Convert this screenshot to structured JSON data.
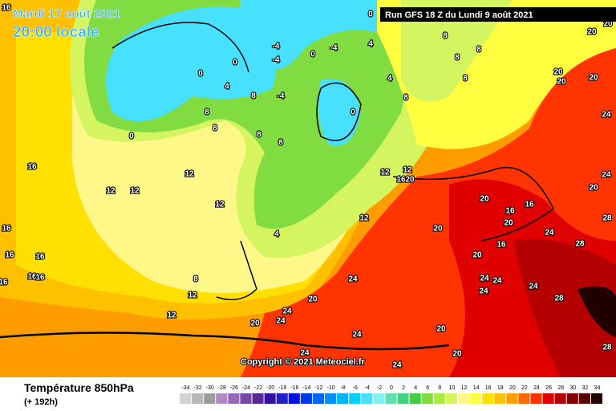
{
  "header": {
    "date": "Mardi 17 août 2021",
    "time": "20:00 locale",
    "run": "Run GFS 18 Z du Lundi 9 août 2021"
  },
  "copyright": "Copyright © 2021 Meteociel.fr",
  "footer": {
    "title": "Température 850hPa",
    "lead": "(+ 192h)"
  },
  "legend": {
    "values": [
      -34,
      -32,
      -30,
      -28,
      -26,
      -24,
      -22,
      -20,
      -18,
      -16,
      -14,
      -12,
      -10,
      -8,
      -6,
      -4,
      -2,
      0,
      2,
      4,
      6,
      8,
      10,
      12,
      14,
      16,
      18,
      20,
      22,
      24,
      26,
      28,
      30,
      32,
      34
    ],
    "colors": [
      "#d4d4d4",
      "#b8b8b8",
      "#9c9c9c",
      "#b488c4",
      "#9868b4",
      "#7848a4",
      "#582894",
      "#3810a0",
      "#2020c4",
      "#0010e0",
      "#0038f0",
      "#0064ff",
      "#0090ff",
      "#00b4ff",
      "#00d0ff",
      "#48e0ff",
      "#88f0f0",
      "#60e0b0",
      "#40d480",
      "#44cc44",
      "#80dc40",
      "#a8ec40",
      "#d4f460",
      "#fff888",
      "#ffff40",
      "#ffe000",
      "#ffc000",
      "#ffa000",
      "#ff6a00",
      "#ff3400",
      "#e00000",
      "#b40000",
      "#880000",
      "#580000",
      "#200000"
    ]
  },
  "contour_labels": [
    16,
    16,
    16,
    16,
    16,
    16,
    16,
    16,
    0,
    0,
    0,
    -4,
    -4,
    -4,
    0,
    -4,
    0,
    0,
    4,
    4,
    8,
    8,
    8,
    8,
    8,
    4,
    8,
    8,
    8,
    8,
    8,
    12,
    12,
    12,
    12,
    12,
    12,
    16,
    20,
    12,
    4,
    8,
    12,
    12,
    20,
    20,
    16,
    16,
    20,
    24,
    20,
    16,
    24,
    20,
    24,
    20,
    24,
    24,
    24,
    24,
    20,
    20,
    24,
    24,
    24,
    24,
    28,
    28,
    28,
    28,
    24,
    20,
    24,
    20,
    20,
    20,
    20,
    20
  ]
}
